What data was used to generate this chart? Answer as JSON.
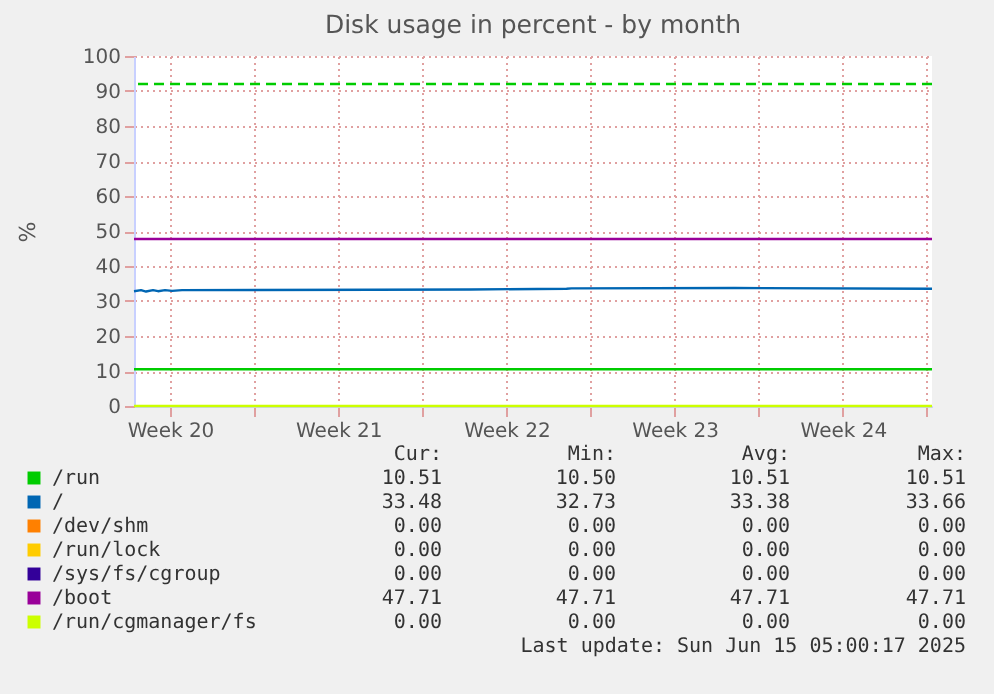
{
  "chart_data": {
    "type": "line",
    "title": "Disk usage in percent - by month",
    "ylabel": "%",
    "x": [
      "2025-05-13T00:00",
      "2025-06-15T05:00"
    ],
    "xlim": [
      "2025-05-13T00:00",
      "2025-06-15T05:00"
    ],
    "xticks": [
      {
        "value": "2025-05-14T12:00",
        "label": "Week 20"
      },
      {
        "value": "2025-05-18T00:00",
        "label": null
      },
      {
        "value": "2025-05-21T12:00",
        "label": "Week 21"
      },
      {
        "value": "2025-05-25T00:00",
        "label": null
      },
      {
        "value": "2025-05-28T12:00",
        "label": "Week 22"
      },
      {
        "value": "2025-06-01T00:00",
        "label": null
      },
      {
        "value": "2025-06-04T12:00",
        "label": "Week 23"
      },
      {
        "value": "2025-06-08T00:00",
        "label": null
      },
      {
        "value": "2025-06-11T12:00",
        "label": "Week 24"
      },
      {
        "value": "2025-06-15T00:00",
        "label": null
      }
    ],
    "ylim": [
      0,
      100
    ],
    "yticks": [
      0,
      10,
      20,
      30,
      40,
      50,
      60,
      70,
      80,
      90,
      100
    ],
    "series": [
      {
        "name": "/run",
        "color": "#00cc00",
        "values": [
          10.5,
          10.5
        ]
      },
      {
        "name": "/",
        "color": "#0066b3",
        "x": [
          "2025-05-13T00:00",
          "2025-05-13T07:00",
          "2025-05-13T12:00",
          "2025-05-13T19:00",
          "2025-05-14T00:00",
          "2025-05-14T07:00",
          "2025-05-14T14:00",
          "2025-05-15T00:00",
          "2025-05-23T00:00",
          "2025-05-27T00:00",
          "2025-05-31T00:00",
          "2025-05-31T05:00",
          "2025-06-07T00:00",
          "2025-06-15T05:00"
        ],
        "values": [
          32.8,
          33.1,
          32.7,
          33.1,
          32.8,
          33.1,
          32.9,
          33.1,
          33.2,
          33.3,
          33.5,
          33.6,
          33.7,
          33.5
        ]
      },
      {
        "name": "/dev/shm",
        "color": "#ff8000",
        "values": [
          null,
          null
        ]
      },
      {
        "name": "/run/lock",
        "color": "#ffcc00",
        "values": [
          null,
          null
        ]
      },
      {
        "name": "/sys/fs/cgroup",
        "color": "#330099",
        "values": [
          null,
          null
        ]
      },
      {
        "name": "/boot",
        "color": "#990099",
        "values": [
          47.7,
          47.7
        ]
      },
      {
        "name": "/run/cgmanager/fs",
        "color": "#ccff00",
        "values": [
          0,
          0
        ]
      }
    ],
    "ref_lines": [
      {
        "axis": "y",
        "value": 92,
        "color": "#00cc00",
        "line_style": "dashed"
      }
    ],
    "grid": true,
    "legend": "bottom",
    "annotations": [
      "Cur:",
      "Min:",
      "Avg:",
      "Max:",
      "10.51",
      "10.50",
      "10.51",
      "10.51",
      "33.48",
      "32.73",
      "33.38",
      "33.66",
      "0.00",
      "0.00",
      "0.00",
      "0.00",
      "0.00",
      "0.00",
      "0.00",
      "0.00",
      "0.00",
      "0.00",
      "0.00",
      "0.00",
      "47.71",
      "47.71",
      "47.71",
      "47.71",
      "0.00",
      "0.00",
      "0.00",
      "0.00",
      "Last update: Sun Jun 15 05:00:17 2025"
    ]
  }
}
